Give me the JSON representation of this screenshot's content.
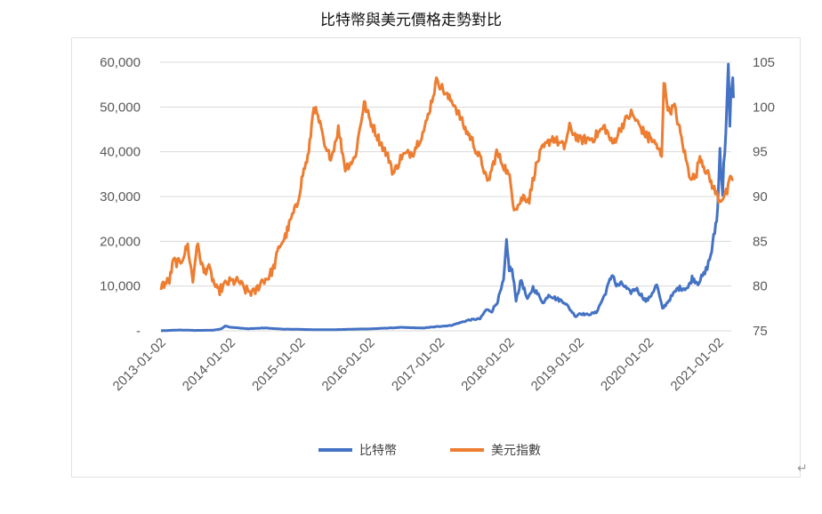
{
  "page": {
    "title": "比特幣與美元價格走勢對比",
    "return_mark": "↵"
  },
  "chart_data": {
    "type": "line",
    "title": "比特幣與美元價格走勢對比",
    "x_axis": {
      "tick_labels": [
        "2013-01-02",
        "2014-01-02",
        "2015-01-02",
        "2016-01-02",
        "2017-01-02",
        "2018-01-02",
        "2019-01-02",
        "2020-01-02",
        "2021-01-02"
      ]
    },
    "y_left": {
      "range": [
        0,
        60000
      ],
      "tick_labels": [
        "-",
        "10,000",
        "20,000",
        "30,000",
        "40,000",
        "50,000",
        "60,000"
      ],
      "tick_values": [
        0,
        10000,
        20000,
        30000,
        40000,
        50000,
        60000
      ]
    },
    "y_right": {
      "range": [
        75,
        105
      ],
      "tick_labels": [
        "75",
        "80",
        "85",
        "90",
        "95",
        "100",
        "105"
      ],
      "tick_values": [
        75,
        80,
        85,
        90,
        95,
        100,
        105
      ]
    },
    "grid": true,
    "legend_position": "bottom",
    "series": [
      {
        "name": "比特幣",
        "axis": "left",
        "color": "#4472c4",
        "points": [
          [
            "2013-01-02",
            13
          ],
          [
            "2013-04-10",
            180
          ],
          [
            "2013-07-01",
            90
          ],
          [
            "2013-10-01",
            130
          ],
          [
            "2013-11-15",
            450
          ],
          [
            "2013-12-04",
            1130
          ],
          [
            "2014-01-02",
            800
          ],
          [
            "2014-04-01",
            460
          ],
          [
            "2014-07-01",
            630
          ],
          [
            "2014-10-01",
            380
          ],
          [
            "2015-01-02",
            315
          ],
          [
            "2015-04-01",
            250
          ],
          [
            "2015-07-01",
            260
          ],
          [
            "2015-11-04",
            400
          ],
          [
            "2016-01-02",
            430
          ],
          [
            "2016-06-17",
            760
          ],
          [
            "2016-10-01",
            610
          ],
          [
            "2017-01-02",
            1000
          ],
          [
            "2017-03-01",
            1200
          ],
          [
            "2017-06-01",
            2400
          ],
          [
            "2017-08-01",
            2700
          ],
          [
            "2017-09-01",
            4700
          ],
          [
            "2017-10-01",
            4400
          ],
          [
            "2017-11-01",
            6700
          ],
          [
            "2017-12-01",
            11000
          ],
          [
            "2017-12-17",
            19300
          ],
          [
            "2017-12-31",
            14000
          ],
          [
            "2018-01-15",
            13500
          ],
          [
            "2018-02-05",
            7000
          ],
          [
            "2018-03-05",
            11400
          ],
          [
            "2018-04-05",
            6800
          ],
          [
            "2018-05-05",
            9700
          ],
          [
            "2018-06-30",
            6200
          ],
          [
            "2018-07-25",
            8200
          ],
          [
            "2018-09-01",
            7200
          ],
          [
            "2018-10-15",
            6500
          ],
          [
            "2018-11-20",
            4500
          ],
          [
            "2018-12-15",
            3200
          ],
          [
            "2019-01-02",
            3900
          ],
          [
            "2019-02-15",
            3600
          ],
          [
            "2019-04-01",
            4100
          ],
          [
            "2019-05-15",
            8000
          ],
          [
            "2019-06-26",
            12900
          ],
          [
            "2019-07-15",
            10000
          ],
          [
            "2019-08-15",
            10500
          ],
          [
            "2019-09-25",
            8500
          ],
          [
            "2019-10-26",
            9500
          ],
          [
            "2019-12-17",
            6700
          ],
          [
            "2020-01-02",
            7200
          ],
          [
            "2020-02-12",
            10300
          ],
          [
            "2020-03-13",
            4900
          ],
          [
            "2020-04-15",
            6800
          ],
          [
            "2020-06-01",
            9500
          ],
          [
            "2020-07-25",
            9600
          ],
          [
            "2020-08-15",
            11800
          ],
          [
            "2020-09-15",
            10800
          ],
          [
            "2020-10-21",
            12800
          ],
          [
            "2020-11-15",
            16000
          ],
          [
            "2020-12-01",
            19000
          ],
          [
            "2020-12-27",
            27000
          ],
          [
            "2021-01-08",
            40500
          ],
          [
            "2021-01-22",
            31000
          ],
          [
            "2021-02-08",
            46000
          ],
          [
            "2021-02-21",
            57500
          ],
          [
            "2021-03-01",
            45000
          ],
          [
            "2021-03-12",
            57000
          ],
          [
            "2021-03-20",
            52000
          ]
        ]
      },
      {
        "name": "美元指數",
        "axis": "right",
        "color": "#ed7d31",
        "points": [
          [
            "2013-01-02",
            80.0
          ],
          [
            "2013-02-15",
            80.6
          ],
          [
            "2013-03-08",
            82.8
          ],
          [
            "2013-04-10",
            82.5
          ],
          [
            "2013-05-22",
            84.5
          ],
          [
            "2013-06-18",
            80.5
          ],
          [
            "2013-07-09",
            84.7
          ],
          [
            "2013-08-15",
            81.5
          ],
          [
            "2013-09-05",
            82.2
          ],
          [
            "2013-10-25",
            79.3
          ],
          [
            "2013-12-10",
            80.3
          ],
          [
            "2014-01-02",
            80.5
          ],
          [
            "2014-02-15",
            80.5
          ],
          [
            "2014-03-15",
            79.6
          ],
          [
            "2014-05-05",
            79.2
          ],
          [
            "2014-06-15",
            80.6
          ],
          [
            "2014-07-15",
            80.9
          ],
          [
            "2014-08-15",
            82.0
          ],
          [
            "2014-09-15",
            84.5
          ],
          [
            "2014-10-15",
            85.5
          ],
          [
            "2014-11-15",
            87.5
          ],
          [
            "2014-12-15",
            89.0
          ],
          [
            "2015-01-15",
            92.5
          ],
          [
            "2015-02-15",
            94.8
          ],
          [
            "2015-03-13",
            100.2
          ],
          [
            "2015-04-15",
            98.0
          ],
          [
            "2015-05-15",
            95.0
          ],
          [
            "2015-06-15",
            94.5
          ],
          [
            "2015-07-20",
            97.6
          ],
          [
            "2015-08-25",
            93.2
          ],
          [
            "2015-10-15",
            94.3
          ],
          [
            "2015-12-02",
            100.5
          ],
          [
            "2016-01-02",
            98.5
          ],
          [
            "2016-02-15",
            96.5
          ],
          [
            "2016-04-15",
            94.0
          ],
          [
            "2016-05-03",
            92.5
          ],
          [
            "2016-06-15",
            94.5
          ],
          [
            "2016-08-15",
            95.0
          ],
          [
            "2016-10-15",
            97.6
          ],
          [
            "2016-12-20",
            103.3
          ],
          [
            "2017-01-02",
            102.5
          ],
          [
            "2017-02-15",
            101.0
          ],
          [
            "2017-03-15",
            100.5
          ],
          [
            "2017-05-15",
            97.5
          ],
          [
            "2017-06-15",
            96.5
          ],
          [
            "2017-07-15",
            95.0
          ],
          [
            "2017-08-15",
            93.5
          ],
          [
            "2017-09-08",
            91.4
          ],
          [
            "2017-10-26",
            94.9
          ],
          [
            "2017-12-15",
            93.0
          ],
          [
            "2018-01-02",
            92.0
          ],
          [
            "2018-01-25",
            88.9
          ],
          [
            "2018-02-15",
            89.0
          ],
          [
            "2018-03-15",
            90.0
          ],
          [
            "2018-04-15",
            89.7
          ],
          [
            "2018-05-15",
            93.0
          ],
          [
            "2018-06-15",
            95.0
          ],
          [
            "2018-08-15",
            96.6
          ],
          [
            "2018-10-15",
            95.5
          ],
          [
            "2018-11-12",
            97.7
          ],
          [
            "2019-01-02",
            96.3
          ],
          [
            "2019-03-15",
            96.5
          ],
          [
            "2019-05-15",
            97.8
          ],
          [
            "2019-06-25",
            95.8
          ],
          [
            "2019-08-15",
            98.0
          ],
          [
            "2019-10-01",
            99.3
          ],
          [
            "2019-12-31",
            96.4
          ],
          [
            "2020-01-02",
            96.8
          ],
          [
            "2020-03-09",
            94.7
          ],
          [
            "2020-03-20",
            102.8
          ],
          [
            "2020-04-15",
            99.5
          ],
          [
            "2020-05-15",
            100.0
          ],
          [
            "2020-06-15",
            97.0
          ],
          [
            "2020-07-31",
            92.5
          ],
          [
            "2020-09-01",
            92.0
          ],
          [
            "2020-09-25",
            94.6
          ],
          [
            "2020-10-15",
            93.5
          ],
          [
            "2020-12-15",
            90.5
          ],
          [
            "2021-01-06",
            89.6
          ],
          [
            "2021-02-15",
            90.5
          ],
          [
            "2021-03-08",
            92.3
          ],
          [
            "2021-03-20",
            91.9
          ]
        ]
      }
    ]
  }
}
